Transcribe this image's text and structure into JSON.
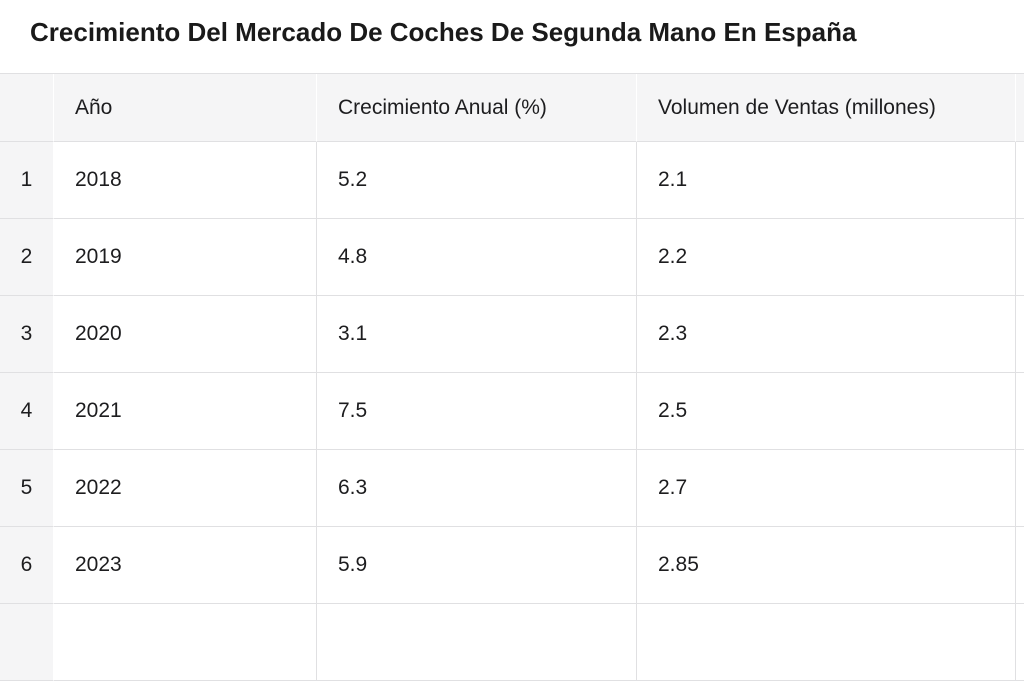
{
  "page": {
    "title": "Crecimiento Del Mercado De Coches De Segunda Mano En España"
  },
  "table": {
    "corner_label": "",
    "columns": [
      "Año",
      "Crecimiento Anual (%)",
      "Volumen de Ventas (millones)"
    ],
    "rows": [
      {
        "index": "1",
        "cells": [
          "2018",
          "5.2",
          "2.1"
        ]
      },
      {
        "index": "2",
        "cells": [
          "2019",
          "4.8",
          "2.2"
        ]
      },
      {
        "index": "3",
        "cells": [
          "2020",
          "3.1",
          "2.3"
        ]
      },
      {
        "index": "4",
        "cells": [
          "2021",
          "7.5",
          "2.5"
        ]
      },
      {
        "index": "5",
        "cells": [
          "2022",
          "6.3",
          "2.7"
        ]
      },
      {
        "index": "6",
        "cells": [
          "2023",
          "5.9",
          "2.85"
        ]
      }
    ]
  },
  "colors": {
    "page_bg": "#ffffff",
    "header_bg": "#f5f5f6",
    "row_index_bg": "#f5f5f6",
    "border": "#e0e0e2",
    "header_divider": "#ffffff",
    "text": "#1d1d1f",
    "title_text": "#1a1a1a"
  },
  "chart_data": {
    "type": "table",
    "title": "Crecimiento Del Mercado De Coches De Segunda Mano En España",
    "columns": [
      "Año",
      "Crecimiento Anual (%)",
      "Volumen de Ventas (millones)"
    ],
    "rows": [
      [
        2018,
        5.2,
        2.1
      ],
      [
        2019,
        4.8,
        2.2
      ],
      [
        2020,
        3.1,
        2.3
      ],
      [
        2021,
        7.5,
        2.5
      ],
      [
        2022,
        6.3,
        2.7
      ],
      [
        2023,
        5.9,
        2.85
      ]
    ],
    "row_numbers": [
      1,
      2,
      3,
      4,
      5,
      6
    ],
    "layout_hints": {
      "header_background": "#f5f5f6",
      "gridlines": true,
      "partial_row_visible_bottom": true,
      "partial_column_visible_right": true
    }
  }
}
